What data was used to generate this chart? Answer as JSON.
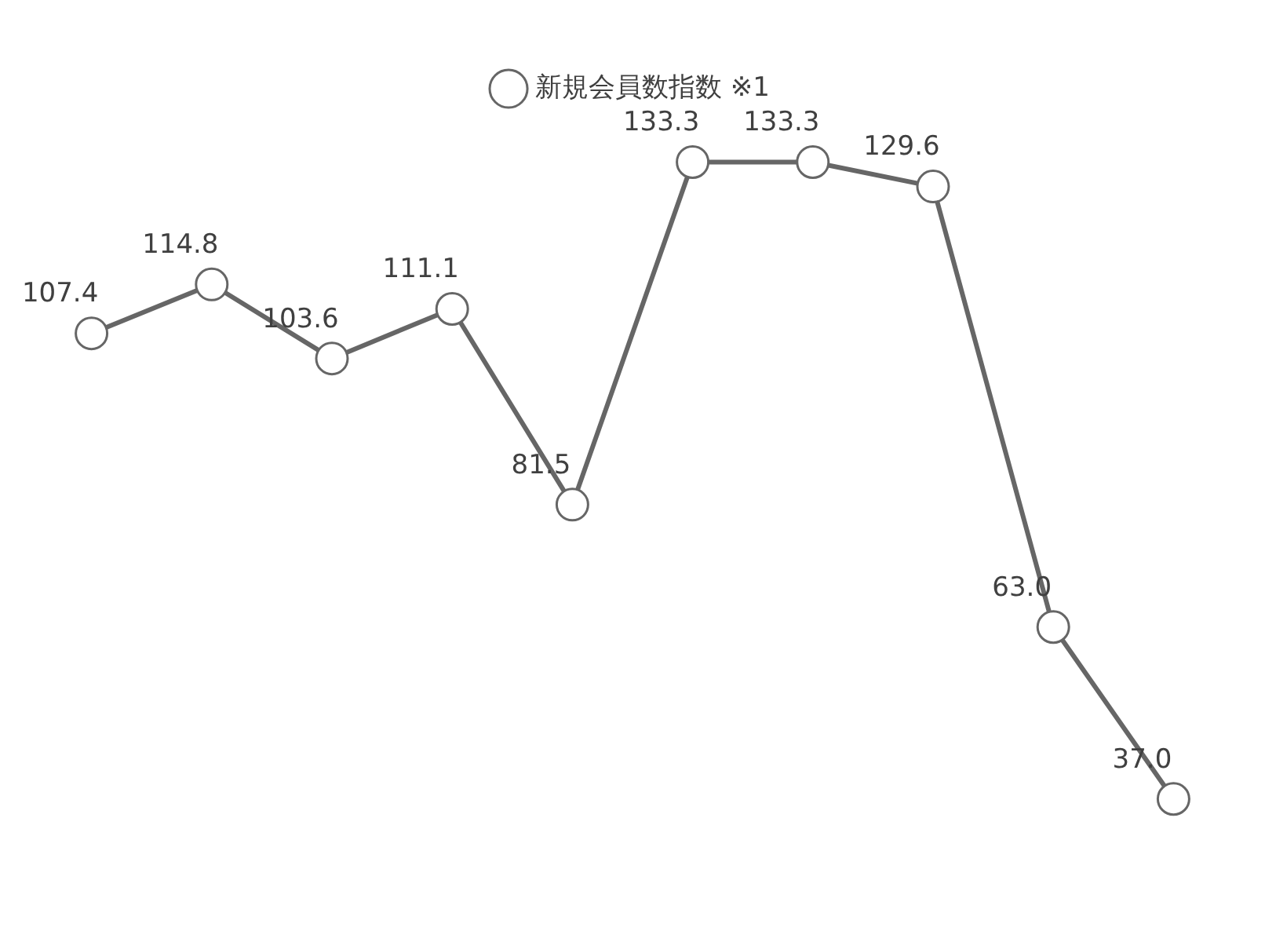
{
  "chart_data": {
    "type": "line",
    "categories": [
      null,
      null,
      null,
      null,
      null,
      null,
      null,
      null,
      null,
      null
    ],
    "series": [
      {
        "name": "新規会員数指数 ※1",
        "color": "#666666",
        "values": [
          107.4,
          114.8,
          103.6,
          111.1,
          81.5,
          133.3,
          133.3,
          129.6,
          63.0,
          37.0
        ],
        "value_labels": [
          "107.4",
          "114.8",
          "103.6",
          "111.1",
          "81.5",
          "133.3",
          "133.3",
          "129.6",
          "63.0",
          "37.0"
        ]
      }
    ],
    "legend": "top",
    "marker": "circle",
    "line_style": "solid"
  }
}
